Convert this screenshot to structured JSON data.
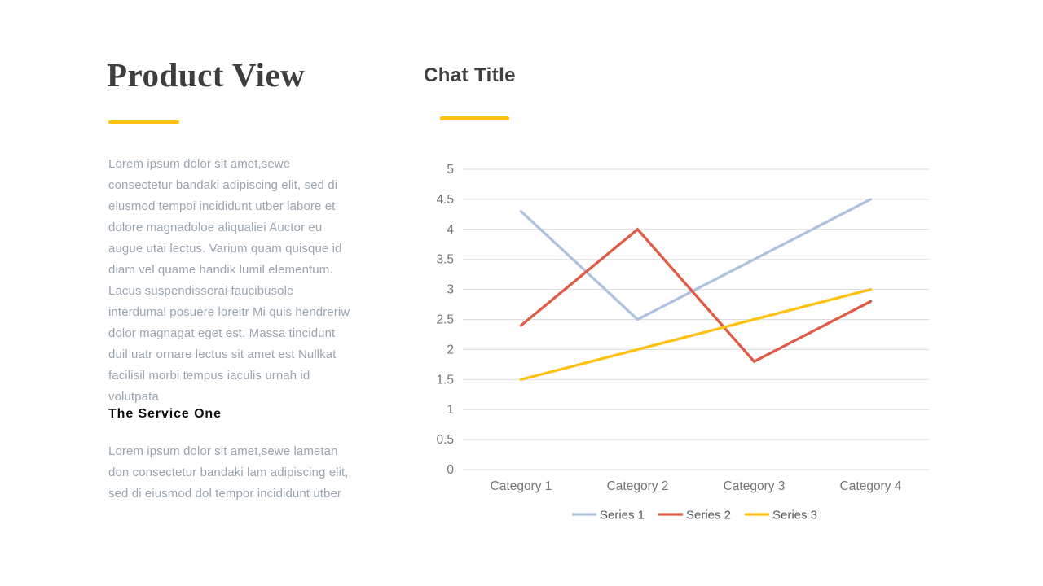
{
  "accent_color": "#FDC110",
  "left_column": {
    "title": "Product View",
    "paragraph1": "Lorem ipsum dolor sit amet,sewe consectetur bandaki adipiscing elit, sed di eiusmod tempoi incididunt utber labore et dolore magnadoloe aliqualiei Auctor eu augue utai lectus. Varium quam quisque id diam vel quame handik lumil elementum. Lacus suspendisserai faucibusole interdumal posuere loreitr Mi quis hendreriw dolor magnagat eget est. Massa tincidunt duil uatr ornare lectus sit amet est Nullkat facilisil morbi tempus iaculis urnah id volutpata",
    "subheading": "The Service One",
    "paragraph2": "Lorem ipsum dolor sit amet,sewe lametan don consectetur bandaki lam adipiscing elit, sed di eiusmod dol tempor incididunt utber"
  },
  "chart_section": {
    "title": "Chat Title"
  },
  "chart_data": {
    "type": "line",
    "title": "Chat Title",
    "categories": [
      "Category 1",
      "Category 2",
      "Category 3",
      "Category 4"
    ],
    "series": [
      {
        "name": "Series 1",
        "values": [
          4.3,
          2.5,
          3.5,
          4.5
        ],
        "color": "#AEC2E0"
      },
      {
        "name": "Series 2",
        "values": [
          2.4,
          4.0,
          1.8,
          2.8
        ],
        "color": "#DE5C45"
      },
      {
        "name": "Series 3",
        "values": [
          1.5,
          2.0,
          2.5,
          3.0
        ],
        "color": "#FDC110"
      }
    ],
    "xlabel": "",
    "ylabel": "",
    "ylim": [
      0,
      5
    ],
    "ystep": 0.5,
    "grid": true,
    "gridline_color": "#DCDCDC",
    "axis_label_color": "#757575",
    "legend_text_color": "#595959",
    "legend_position": "bottom"
  }
}
